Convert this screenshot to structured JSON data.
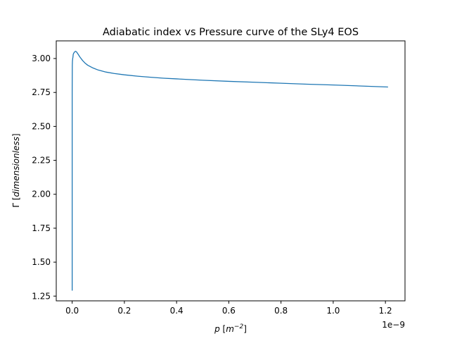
{
  "chart_data": {
    "type": "line",
    "title": "Adiabatic index vs Pressure curve of the SLy4 EOS",
    "xlabel_main": "p",
    "xlabel_unit_open": " [",
    "xlabel_unit_base": "m",
    "xlabel_unit_exp": "−2",
    "xlabel_unit_close": "]",
    "ylabel_main": "Γ",
    "ylabel_unit": " [",
    "ylabel_unit_italic": "dimensionless",
    "ylabel_unit_close": "]",
    "x_offset_label": "1e−9",
    "xlim": [
      -0.061,
      1.275
    ],
    "ylim": [
      1.215,
      3.13
    ],
    "xticks": [
      0.0,
      0.2,
      0.4,
      0.6,
      0.8,
      1.0,
      1.2
    ],
    "xtick_labels": [
      "0.0",
      "0.2",
      "0.4",
      "0.6",
      "0.8",
      "1.0",
      "1.2"
    ],
    "yticks": [
      1.25,
      1.5,
      1.75,
      2.0,
      2.25,
      2.5,
      2.75,
      3.0
    ],
    "ytick_labels": [
      "1.25",
      "1.50",
      "1.75",
      "2.00",
      "2.25",
      "2.50",
      "2.75",
      "3.00"
    ],
    "grid": false,
    "line_color": "#1f77b4",
    "series": [
      {
        "x": [
          0.0,
          0.0,
          0.0,
          0.0,
          0.0,
          0.0,
          0.0005,
          0.001,
          0.002,
          0.003,
          0.004,
          0.006,
          0.008,
          0.01,
          0.013,
          0.016,
          0.02,
          0.025,
          0.03,
          0.04,
          0.05,
          0.06,
          0.08,
          0.1,
          0.13,
          0.16,
          0.2,
          0.25,
          0.3,
          0.35,
          0.4,
          0.5,
          0.6,
          0.7,
          0.8,
          0.9,
          1.0,
          1.1,
          1.21
        ],
        "y": [
          1.29,
          1.34,
          1.3,
          1.6,
          2.3,
          2.75,
          2.95,
          2.98,
          3.0,
          3.01,
          3.03,
          3.04,
          3.045,
          3.05,
          3.053,
          3.05,
          3.04,
          3.025,
          3.01,
          2.985,
          2.965,
          2.95,
          2.93,
          2.915,
          2.9,
          2.89,
          2.88,
          2.87,
          2.862,
          2.855,
          2.85,
          2.84,
          2.832,
          2.825,
          2.818,
          2.811,
          2.805,
          2.798,
          2.79
        ]
      }
    ]
  }
}
